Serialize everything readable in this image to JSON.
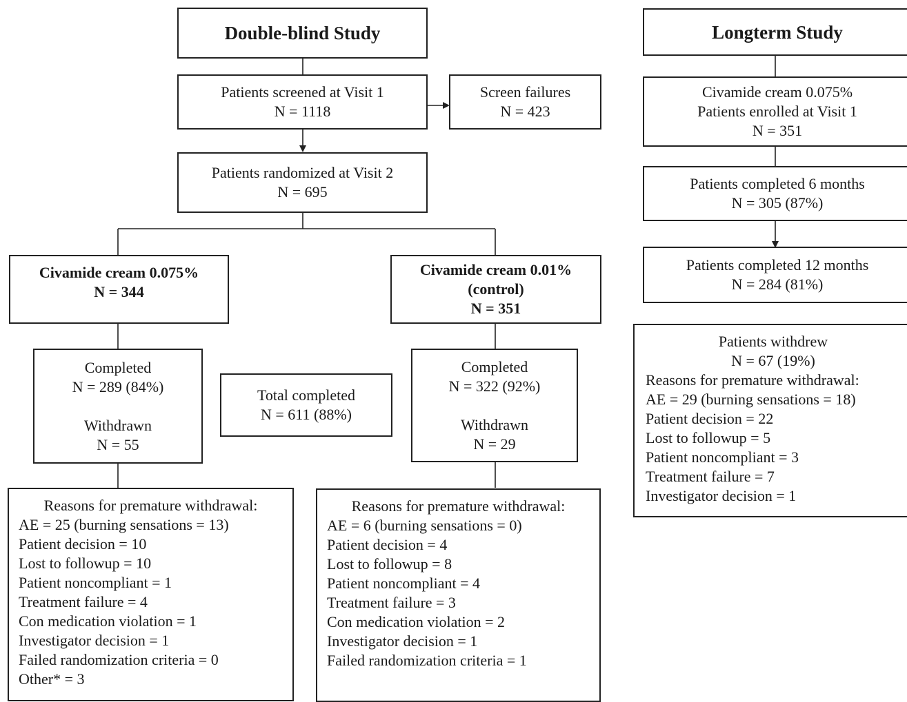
{
  "double_blind": {
    "title": "Double-blind Study",
    "screened": {
      "label": "Patients screened at Visit 1",
      "n": "N = 1118"
    },
    "screen_failures": {
      "label": "Screen failures",
      "n": "N = 423"
    },
    "randomized": {
      "label": "Patients randomized at Visit 2",
      "n": "N = 695"
    },
    "arm_active": {
      "label": "Civamide cream 0.075%",
      "n": "N = 344",
      "completed_label": "Completed",
      "completed_n": "N = 289 (84%)",
      "withdrawn_label": "Withdrawn",
      "withdrawn_n": "N = 55",
      "reasons_title": "Reasons for premature withdrawal:",
      "reasons": [
        "AE = 25 (burning sensations = 13)",
        "Patient decision = 10",
        "Lost to followup = 10",
        "Patient noncompliant = 1",
        "Treatment failure = 4",
        "Con medication violation = 1",
        "Investigator decision = 1",
        "Failed randomization criteria = 0",
        "Other* = 3"
      ]
    },
    "arm_control": {
      "label_line1": "Civamide cream 0.01%",
      "label_line2": "(control)",
      "n": "N = 351",
      "completed_label": "Completed",
      "completed_n": "N = 322 (92%)",
      "withdrawn_label": "Withdrawn",
      "withdrawn_n": "N = 29",
      "reasons_title": "Reasons for premature withdrawal:",
      "reasons": [
        "AE = 6 (burning sensations = 0)",
        "Patient decision = 4",
        "Lost to followup = 8",
        "Patient noncompliant = 4",
        "Treatment failure = 3",
        "Con medication violation = 2",
        "Investigator decision = 1",
        "Failed randomization criteria = 1"
      ]
    },
    "total_completed": {
      "label": "Total completed",
      "n": "N = 611 (88%)"
    }
  },
  "longterm": {
    "title": "Longterm Study",
    "enrolled": {
      "line1": "Civamide cream 0.075%",
      "line2": "Patients enrolled at Visit 1",
      "n": "N = 351"
    },
    "six_months": {
      "label": "Patients completed 6 months",
      "n": "N = 305 (87%)"
    },
    "twelve_months": {
      "label": "Patients completed 12 months",
      "n": "N = 284 (81%)"
    },
    "withdrew": {
      "label": "Patients withdrew",
      "n": "N = 67 (19%)",
      "reasons_title": "Reasons for premature withdrawal:",
      "reasons": [
        "AE = 29 (burning sensations = 18)",
        "Patient decision = 22",
        "Lost to followup = 5",
        "Patient noncompliant = 3",
        "Treatment failure = 7",
        "Investigator decision = 1"
      ]
    }
  }
}
